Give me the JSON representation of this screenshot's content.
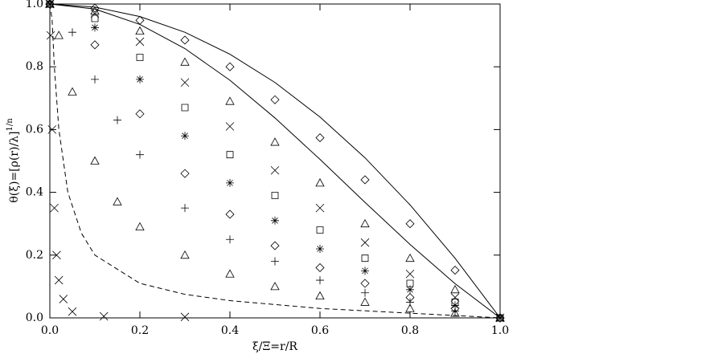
{
  "chart_data": {
    "type": "scatter",
    "xlabel": "ξ/Ξ=r/R",
    "ylabel": "θ(ξ)=[ρ(r)/λ]",
    "ylabel_superscript": "1/n",
    "xlim": [
      0,
      1
    ],
    "ylim": [
      0,
      1
    ],
    "xticks": [
      {
        "value": 0,
        "label": "0.0"
      },
      {
        "value": 0.2,
        "label": "0.2"
      },
      {
        "value": 0.4,
        "label": "0.4"
      },
      {
        "value": 0.6,
        "label": "0.6"
      },
      {
        "value": 0.8,
        "label": "0.8"
      },
      {
        "value": 1,
        "label": "1.0"
      }
    ],
    "yticks": [
      {
        "value": 0,
        "label": "0.0"
      },
      {
        "value": 0.2,
        "label": "0.2"
      },
      {
        "value": 0.4,
        "label": "0.4"
      },
      {
        "value": 0.6,
        "label": "0.6"
      },
      {
        "value": 0.8,
        "label": "0.8"
      },
      {
        "value": 1,
        "label": "1.0"
      }
    ],
    "series": [
      {
        "marker": "line",
        "color": "#000000",
        "x": [
          0,
          0.1,
          0.2,
          0.3,
          0.4,
          0.5,
          0.6,
          0.7,
          0.8,
          0.9,
          1
        ],
        "values": [
          1,
          0.99,
          0.96,
          0.91,
          0.84,
          0.75,
          0.64,
          0.51,
          0.36,
          0.19,
          0
        ]
      },
      {
        "marker": "diamond",
        "color": "#000000",
        "x": [
          0,
          0.1,
          0.2,
          0.3,
          0.4,
          0.5,
          0.6,
          0.7,
          0.8,
          0.9,
          1
        ],
        "values": [
          1,
          0.987,
          0.948,
          0.885,
          0.8,
          0.695,
          0.574,
          0.44,
          0.3,
          0.152,
          0
        ]
      },
      {
        "marker": "line",
        "color": "#000000",
        "x": [
          0,
          0.1,
          0.2,
          0.3,
          0.4,
          0.5,
          0.6,
          0.7,
          0.8,
          0.9,
          1
        ],
        "values": [
          1,
          0.984,
          0.935,
          0.858,
          0.757,
          0.637,
          0.505,
          0.368,
          0.234,
          0.109,
          0
        ]
      },
      {
        "marker": "triangle",
        "color": "#000000",
        "x": [
          0,
          0.1,
          0.2,
          0.3,
          0.4,
          0.5,
          0.6,
          0.7,
          0.8,
          0.9,
          1
        ],
        "values": [
          1,
          0.978,
          0.914,
          0.815,
          0.69,
          0.56,
          0.43,
          0.3,
          0.19,
          0.09,
          0
        ]
      },
      {
        "marker": "x",
        "color": "#000000",
        "x": [
          0,
          0.1,
          0.2,
          0.3,
          0.4,
          0.5,
          0.6,
          0.7,
          0.8,
          0.9,
          1
        ],
        "values": [
          1,
          0.969,
          0.88,
          0.75,
          0.61,
          0.47,
          0.35,
          0.24,
          0.14,
          0.065,
          0
        ]
      },
      {
        "marker": "square",
        "color": "#000000",
        "x": [
          0,
          0.1,
          0.2,
          0.3,
          0.4,
          0.5,
          0.6,
          0.7,
          0.8,
          0.9,
          1
        ],
        "values": [
          1,
          0.954,
          0.83,
          0.67,
          0.52,
          0.39,
          0.28,
          0.19,
          0.11,
          0.05,
          0
        ]
      },
      {
        "marker": "asterisk",
        "color": "#000000",
        "x": [
          0,
          0.1,
          0.2,
          0.3,
          0.4,
          0.5,
          0.6,
          0.7,
          0.8,
          0.9,
          1
        ],
        "values": [
          1,
          0.925,
          0.76,
          0.58,
          0.43,
          0.31,
          0.22,
          0.15,
          0.09,
          0.04,
          0
        ]
      },
      {
        "marker": "diamond",
        "color": "#000000",
        "x": [
          0,
          0.1,
          0.2,
          0.3,
          0.4,
          0.5,
          0.6,
          0.7,
          0.8,
          0.9,
          1
        ],
        "values": [
          1,
          0.87,
          0.65,
          0.46,
          0.33,
          0.23,
          0.16,
          0.11,
          0.065,
          0.03,
          0
        ]
      },
      {
        "marker": "plus",
        "color": "#000000",
        "x": [
          0,
          0.05,
          0.1,
          0.15,
          0.2,
          0.3,
          0.4,
          0.5,
          0.6,
          0.7,
          0.8,
          0.9,
          1
        ],
        "values": [
          1,
          0.91,
          0.76,
          0.63,
          0.52,
          0.35,
          0.25,
          0.18,
          0.12,
          0.08,
          0.05,
          0.022,
          0
        ]
      },
      {
        "marker": "triangle",
        "color": "#000000",
        "x": [
          0,
          0.02,
          0.05,
          0.1,
          0.15,
          0.2,
          0.3,
          0.4,
          0.5,
          0.6,
          0.7,
          0.8,
          0.9,
          1
        ],
        "values": [
          1,
          0.9,
          0.72,
          0.5,
          0.37,
          0.29,
          0.2,
          0.14,
          0.1,
          0.07,
          0.05,
          0.03,
          0.015,
          0
        ]
      },
      {
        "marker": "dashed",
        "color": "#000000",
        "x": [
          0,
          0.005,
          0.01,
          0.02,
          0.04,
          0.07,
          0.1,
          0.2,
          0.3,
          0.4,
          0.6,
          0.8,
          1
        ],
        "values": [
          1,
          0.95,
          0.8,
          0.6,
          0.4,
          0.27,
          0.2,
          0.11,
          0.075,
          0.055,
          0.03,
          0.015,
          0
        ]
      },
      {
        "marker": "x",
        "color": "#000000",
        "x": [
          0,
          0.002,
          0.005,
          0.01,
          0.015,
          0.02,
          0.03,
          0.05,
          0.12,
          0.3
        ],
        "values": [
          1,
          0.9,
          0.6,
          0.35,
          0.2,
          0.12,
          0.06,
          0.02,
          0.005,
          0.003
        ]
      }
    ]
  }
}
